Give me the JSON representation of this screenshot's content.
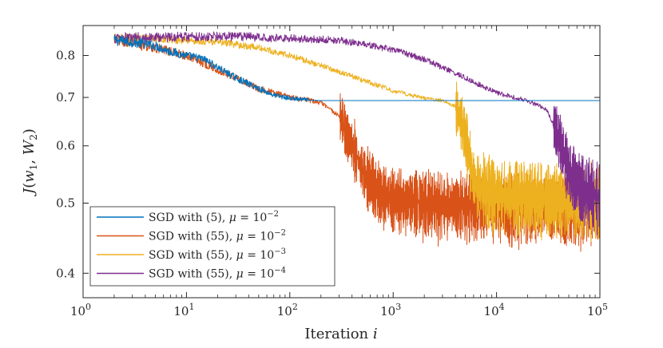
{
  "chart_data": {
    "type": "line",
    "title": "",
    "xlabel": "Iteration i",
    "ylabel": "J(w1, W2)",
    "xscale": "log",
    "yscale": "log",
    "xlim": [
      1,
      100000
    ],
    "ylim": [
      0.37,
      0.88
    ],
    "x_ticks": [
      {
        "value": 1,
        "base": "10",
        "exp": "0"
      },
      {
        "value": 10,
        "base": "10",
        "exp": "1"
      },
      {
        "value": 100,
        "base": "10",
        "exp": "2"
      },
      {
        "value": 1000,
        "base": "10",
        "exp": "3"
      },
      {
        "value": 10000,
        "base": "10",
        "exp": "4"
      },
      {
        "value": 100000,
        "base": "10",
        "exp": "5"
      }
    ],
    "y_ticks": [
      {
        "value": 0.4,
        "label": "0.4"
      },
      {
        "value": 0.5,
        "label": "0.5"
      },
      {
        "value": 0.6,
        "label": "0.6"
      },
      {
        "value": 0.7,
        "label": "0.7"
      },
      {
        "value": 0.8,
        "label": "0.8"
      }
    ],
    "legend_position": "bottom-left",
    "series": [
      {
        "name": "SGD with (5), μ = 10^-2",
        "label_text": "SGD with (5), ",
        "mu_exp": "−2",
        "color": "#0072BD",
        "line_width": 1.1,
        "x": [
          2,
          3,
          4,
          5,
          7,
          10,
          15,
          20,
          30,
          50,
          70,
          100,
          150,
          200,
          500,
          1000,
          10000,
          100000
        ],
        "y": [
          0.84,
          0.835,
          0.83,
          0.825,
          0.81,
          0.8,
          0.79,
          0.77,
          0.745,
          0.72,
          0.705,
          0.698,
          0.694,
          0.693,
          0.693,
          0.693,
          0.693,
          0.693
        ],
        "noise": {
          "base": 0.012,
          "plateau_x": 150,
          "plateau_amp": 0.0
        }
      },
      {
        "name": "SGD with (55), μ = 10^-2",
        "label_text": "SGD with (55), ",
        "mu_exp": "−2",
        "color": "#D95319",
        "line_width": 1.0,
        "x": [
          2,
          3,
          5,
          10,
          15,
          20,
          30,
          50,
          100,
          150,
          200,
          300,
          400,
          500,
          700,
          1000,
          2000,
          10000,
          100000
        ],
        "y": [
          0.84,
          0.83,
          0.82,
          0.8,
          0.78,
          0.765,
          0.745,
          0.72,
          0.7,
          0.694,
          0.688,
          0.66,
          0.6,
          0.555,
          0.52,
          0.505,
          0.5,
          0.495,
          0.49
        ],
        "noise": {
          "base": 0.012,
          "plateau_x": 300,
          "plateau_amp": 0.055
        }
      },
      {
        "name": "SGD with (55), μ = 10^-3",
        "label_text": "SGD with (55), ",
        "mu_exp": "−3",
        "color": "#EDB120",
        "line_width": 1.0,
        "x": [
          2,
          5,
          10,
          20,
          50,
          100,
          200,
          500,
          1000,
          2000,
          3000,
          4000,
          5000,
          6000,
          8000,
          10000,
          100000
        ],
        "y": [
          0.845,
          0.845,
          0.84,
          0.835,
          0.82,
          0.8,
          0.775,
          0.74,
          0.715,
          0.698,
          0.693,
          0.68,
          0.62,
          0.535,
          0.52,
          0.515,
          0.5
        ],
        "noise": {
          "base": 0.01,
          "plateau_x": 4000,
          "plateau_amp": 0.06
        }
      },
      {
        "name": "SGD with (55), μ = 10^-4",
        "label_text": "SGD with (55), ",
        "mu_exp": "−4",
        "color": "#7E2F8E",
        "line_width": 1.0,
        "x": [
          2,
          10,
          30,
          100,
          300,
          1000,
          2000,
          3000,
          5000,
          10000,
          20000,
          30000,
          40000,
          50000,
          70000,
          100000
        ],
        "y": [
          0.845,
          0.85,
          0.85,
          0.845,
          0.84,
          0.815,
          0.79,
          0.77,
          0.745,
          0.71,
          0.693,
          0.675,
          0.62,
          0.55,
          0.52,
          0.51
        ],
        "noise": {
          "base": 0.012,
          "plateau_x": 35000,
          "plateau_amp": 0.06
        }
      }
    ]
  }
}
